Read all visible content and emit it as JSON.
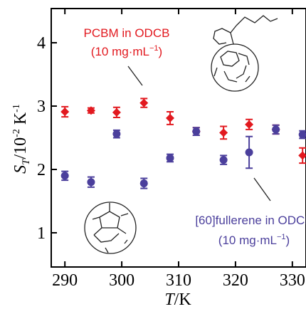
{
  "chart_data": {
    "type": "scatter",
    "xlabel": [
      "T",
      "/K"
    ],
    "ylabel": [
      "S",
      "T",
      "/10",
      "-2",
      " K",
      "-1"
    ],
    "x": [
      290.0,
      294.6,
      299.1,
      303.9,
      308.5,
      313.1,
      317.9,
      322.4,
      327.1,
      331.8
    ],
    "series": [
      {
        "name": "PCBM in ODCB",
        "color": "#e2191f",
        "marker": "diamond",
        "values": [
          2.91,
          2.93,
          2.9,
          3.05,
          2.81,
          2.6,
          2.58,
          2.71,
          2.63,
          2.22
        ],
        "errors": [
          0.08,
          0.04,
          0.08,
          0.07,
          0.1,
          0.06,
          0.1,
          0.08,
          0.07,
          0.12
        ]
      },
      {
        "name": "[60]fullerene in ODCB",
        "color": "#4b3f9c",
        "marker": "circle",
        "values": [
          1.9,
          1.8,
          2.56,
          1.78,
          2.18,
          2.6,
          2.15,
          2.27,
          2.63,
          2.55
        ],
        "errors": [
          0.07,
          0.08,
          0.06,
          0.08,
          0.06,
          0.06,
          0.07,
          0.25,
          0.07,
          0.06
        ]
      }
    ],
    "annotations": [
      {
        "lines": [
          "PCBM in ODCB",
          "(10 mg·mL",
          "−1",
          ")"
        ],
        "color": "#e2191f"
      },
      {
        "lines": [
          "[60]fullerene in ODCB",
          "(10 mg·mL",
          "−1",
          ")"
        ],
        "color": "#4b3f9c"
      }
    ],
    "xlim": [
      287.6,
      332.4
    ],
    "ylim": [
      0.46,
      4.54
    ],
    "xticks": [
      290,
      300,
      310,
      320,
      330
    ],
    "yticks": [
      1,
      2,
      3,
      4
    ],
    "grid": false
  }
}
